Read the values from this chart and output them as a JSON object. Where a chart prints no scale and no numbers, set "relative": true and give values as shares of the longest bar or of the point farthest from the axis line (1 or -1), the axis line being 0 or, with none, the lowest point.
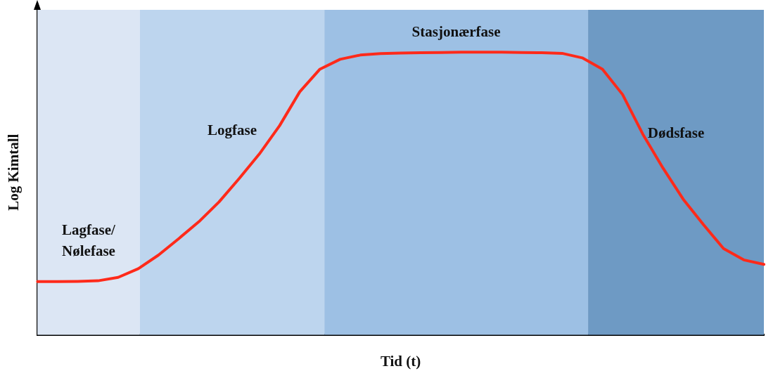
{
  "chart_data": {
    "type": "line",
    "xlabel": "Tid (t)",
    "ylabel": "Log Kimtall",
    "relative": true,
    "legend": false,
    "marker": "none",
    "line_style": "solid",
    "categories": [
      null,
      null,
      null,
      null,
      null,
      null,
      null,
      null,
      null,
      null,
      null,
      null,
      null,
      null,
      null,
      null,
      null,
      null,
      null,
      null,
      null,
      null,
      null,
      null,
      null,
      null,
      null,
      null,
      null,
      null,
      null,
      null,
      null,
      null,
      null,
      null,
      null
    ],
    "series": [
      {
        "color": "#ff2a1a",
        "values": [
          0.188,
          0.188,
          0.189,
          0.191,
          0.203,
          0.234,
          0.282,
          0.34,
          0.4,
          0.47,
          0.553,
          0.64,
          0.74,
          0.86,
          0.94,
          0.975,
          0.99,
          0.995,
          0.997,
          0.998,
          0.999,
          1,
          1,
          1,
          0.999,
          0.998,
          0.996,
          0.98,
          0.94,
          0.85,
          0.71,
          0.59,
          0.48,
          0.39,
          0.305,
          0.265,
          0.249
        ]
      }
    ],
    "annotations": [
      "Lagfase/\nNølefase",
      "Logfase",
      "Stasjonærfase",
      "Dødsfase"
    ]
  }
}
